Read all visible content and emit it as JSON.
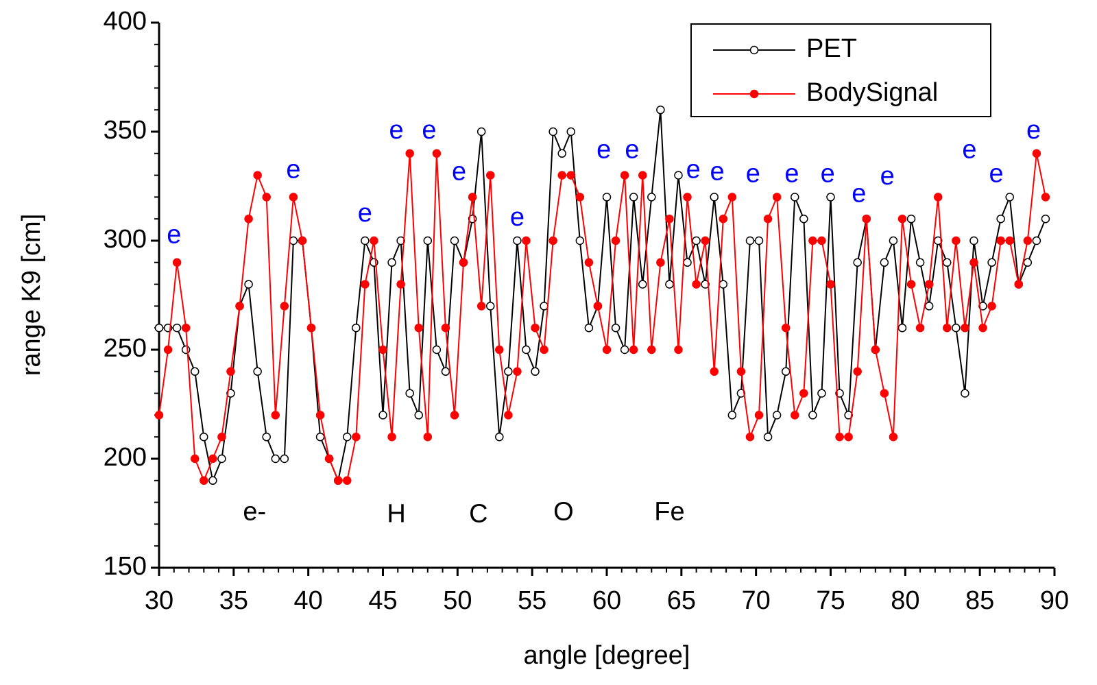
{
  "chart_data": {
    "type": "line",
    "x_label": "angle [degree]",
    "y_label": "range K9 [cm]",
    "xlim": [
      30,
      90
    ],
    "xticks": [
      30,
      35,
      40,
      45,
      50,
      55,
      60,
      65,
      70,
      75,
      80,
      85,
      90
    ],
    "ylim": [
      150,
      400
    ],
    "yticks": [
      150,
      200,
      250,
      300,
      350,
      400
    ],
    "legend": "top-right",
    "x": [
      30.0,
      30.6,
      31.2,
      31.8,
      32.4,
      33.0,
      33.6,
      34.2,
      34.8,
      35.4,
      36.0,
      36.6,
      37.2,
      37.8,
      38.4,
      39.0,
      39.6,
      40.2,
      40.8,
      41.4,
      42.0,
      42.6,
      43.2,
      43.8,
      44.4,
      45.0,
      45.6,
      46.2,
      46.8,
      47.4,
      48.0,
      48.6,
      49.2,
      49.8,
      50.4,
      51.0,
      51.6,
      52.2,
      52.8,
      53.4,
      54.0,
      54.6,
      55.2,
      55.8,
      56.4,
      57.0,
      57.6,
      58.2,
      58.8,
      59.4,
      60.0,
      60.6,
      61.2,
      61.8,
      62.4,
      63.0,
      63.6,
      64.2,
      64.8,
      65.4,
      66.0,
      66.6,
      67.2,
      67.8,
      68.4,
      69.0,
      69.6,
      70.2,
      70.8,
      71.4,
      72.0,
      72.6,
      73.2,
      73.8,
      74.4,
      75.0,
      75.6,
      76.2,
      76.8,
      77.4,
      78.0,
      78.6,
      79.2,
      79.8,
      80.4,
      81.0,
      81.6,
      82.2,
      82.8,
      83.4,
      84.0,
      84.6,
      85.2,
      85.8,
      86.4,
      87.0,
      87.6,
      88.2,
      88.8,
      89.4
    ],
    "series": [
      {
        "name": "PET",
        "color": "#000000",
        "marker": "open",
        "values": [
          260,
          260,
          260,
          250,
          240,
          210,
          190,
          200,
          230,
          270,
          280,
          240,
          210,
          200,
          200,
          300,
          300,
          260,
          210,
          200,
          190,
          210,
          260,
          300,
          290,
          220,
          290,
          300,
          230,
          220,
          300,
          250,
          240,
          300,
          290,
          310,
          350,
          270,
          210,
          240,
          300,
          250,
          240,
          270,
          350,
          340,
          350,
          300,
          260,
          270,
          320,
          260,
          250,
          320,
          280,
          320,
          360,
          280,
          330,
          290,
          300,
          280,
          320,
          280,
          220,
          230,
          300,
          300,
          210,
          220,
          240,
          320,
          310,
          220,
          230,
          320,
          230,
          220,
          290,
          310,
          250,
          290,
          300,
          260,
          310,
          290,
          270,
          300,
          290,
          260,
          230,
          300,
          270,
          290,
          310,
          320,
          280,
          290,
          300,
          310
        ]
      },
      {
        "name": "BodySignal",
        "color": "#ff0000",
        "marker": "filled",
        "values": [
          220,
          250,
          290,
          260,
          200,
          190,
          200,
          210,
          240,
          270,
          310,
          330,
          320,
          220,
          270,
          320,
          300,
          260,
          220,
          200,
          190,
          190,
          210,
          280,
          300,
          250,
          210,
          280,
          340,
          260,
          210,
          340,
          260,
          220,
          290,
          320,
          270,
          330,
          250,
          220,
          240,
          300,
          260,
          250,
          300,
          330,
          330,
          320,
          290,
          270,
          250,
          300,
          330,
          250,
          330,
          250,
          290,
          310,
          250,
          320,
          280,
          300,
          240,
          310,
          320,
          240,
          210,
          220,
          310,
          320,
          260,
          220,
          230,
          300,
          300,
          280,
          210,
          210,
          240,
          310,
          250,
          230,
          210,
          310,
          280,
          260,
          280,
          320,
          260,
          300,
          260,
          290,
          260,
          270,
          300,
          300,
          280,
          300,
          340,
          320
        ]
      }
    ],
    "annotations": [
      {
        "text": "e",
        "x": 31,
        "y": 302,
        "color": "#0000ff"
      },
      {
        "text": "e",
        "x": 39,
        "y": 332,
        "color": "#0000ff"
      },
      {
        "text": "e",
        "x": 43.8,
        "y": 312,
        "color": "#0000ff"
      },
      {
        "text": "e",
        "x": 45.9,
        "y": 350,
        "color": "#0000ff"
      },
      {
        "text": "e",
        "x": 48.1,
        "y": 350,
        "color": "#0000ff"
      },
      {
        "text": "e",
        "x": 50.1,
        "y": 331,
        "color": "#0000ff"
      },
      {
        "text": "e",
        "x": 54,
        "y": 310,
        "color": "#0000ff"
      },
      {
        "text": "e",
        "x": 59.8,
        "y": 341,
        "color": "#0000ff"
      },
      {
        "text": "e",
        "x": 61.7,
        "y": 341,
        "color": "#0000ff"
      },
      {
        "text": "e",
        "x": 65.8,
        "y": 332,
        "color": "#0000ff"
      },
      {
        "text": "e",
        "x": 67.4,
        "y": 331,
        "color": "#0000ff"
      },
      {
        "text": "e",
        "x": 69.8,
        "y": 330,
        "color": "#0000ff"
      },
      {
        "text": "e",
        "x": 72.4,
        "y": 330,
        "color": "#0000ff"
      },
      {
        "text": "e",
        "x": 74.8,
        "y": 330,
        "color": "#0000ff"
      },
      {
        "text": "e",
        "x": 76.9,
        "y": 321,
        "color": "#0000ff"
      },
      {
        "text": "e",
        "x": 78.8,
        "y": 329,
        "color": "#0000ff"
      },
      {
        "text": "e",
        "x": 84.3,
        "y": 341,
        "color": "#0000ff"
      },
      {
        "text": "e",
        "x": 86.1,
        "y": 330,
        "color": "#0000ff"
      },
      {
        "text": "e",
        "x": 88.6,
        "y": 350,
        "color": "#0000ff"
      },
      {
        "text": "e-",
        "x": 36.4,
        "y": 175,
        "color": "#000000"
      },
      {
        "text": "H",
        "x": 45.9,
        "y": 174,
        "color": "#000000"
      },
      {
        "text": "C",
        "x": 51.4,
        "y": 174,
        "color": "#000000"
      },
      {
        "text": "O",
        "x": 57.1,
        "y": 175,
        "color": "#000000"
      },
      {
        "text": "Fe",
        "x": 64.2,
        "y": 175,
        "color": "#000000"
      }
    ]
  }
}
